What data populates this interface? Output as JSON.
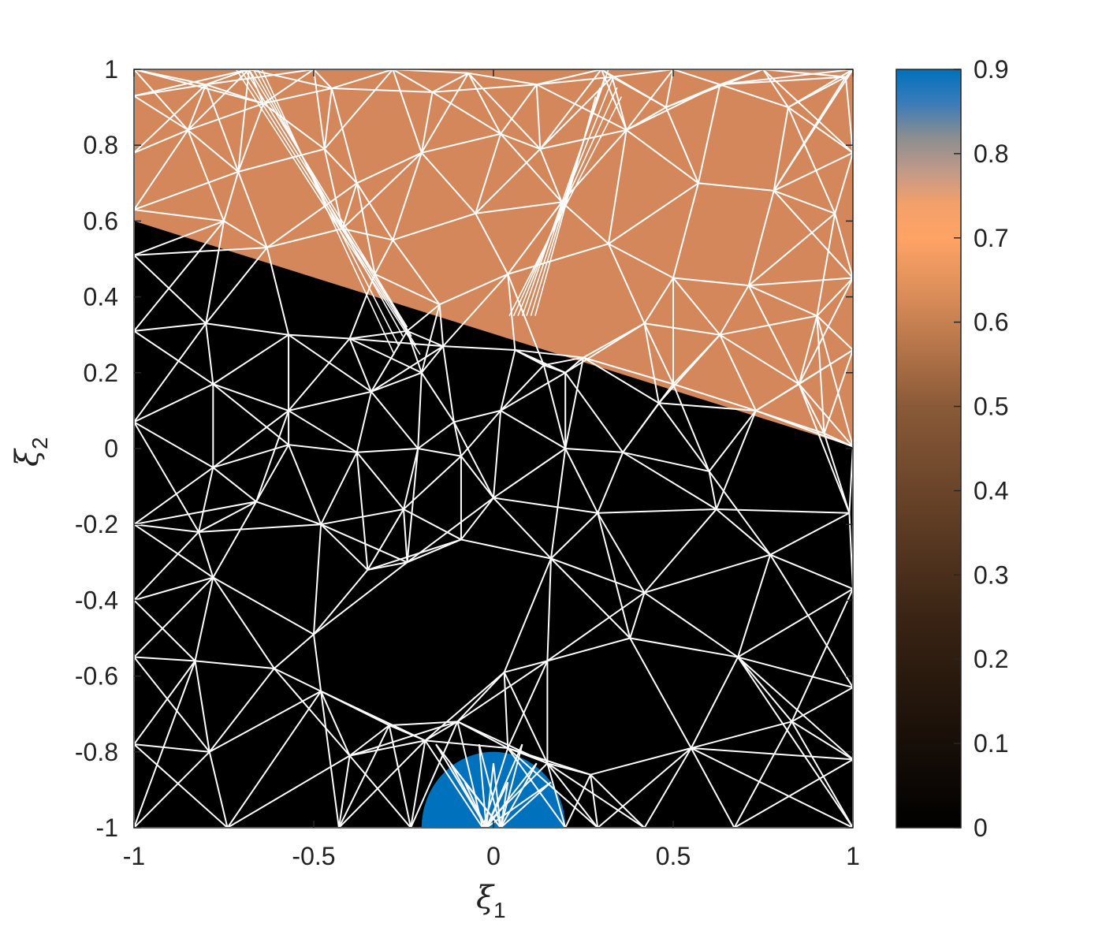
{
  "chart_data": {
    "type": "heatmap",
    "description_type": "triangulated mesh over a piecewise-constant field",
    "xlabel": "ξ",
    "xlabel_sub": "1",
    "ylabel": "ξ",
    "ylabel_sub": "2",
    "xlim": [
      -1,
      1
    ],
    "ylim": [
      -1,
      1
    ],
    "x_ticks": [
      -1,
      -0.5,
      0,
      0.5,
      1
    ],
    "x_tick_labels": [
      "-1",
      "-0.5",
      "0",
      "0.5",
      "1"
    ],
    "y_ticks": [
      -1,
      -0.8,
      -0.6,
      -0.4,
      -0.2,
      0,
      0.2,
      0.4,
      0.6,
      0.8,
      1
    ],
    "y_tick_labels": [
      "-1",
      "-0.8",
      "-0.6",
      "-0.4",
      "-0.2",
      "0",
      "0.2",
      "0.4",
      "0.6",
      "0.8",
      "1"
    ],
    "colorbar": {
      "range": [
        0,
        0.9
      ],
      "ticks": [
        0,
        0.1,
        0.2,
        0.3,
        0.4,
        0.5,
        0.6,
        0.7,
        0.8,
        0.9
      ],
      "tick_labels": [
        "0",
        "0.1",
        "0.2",
        "0.3",
        "0.4",
        "0.5",
        "0.6",
        "0.7",
        "0.8",
        "0.9"
      ],
      "colormap_stops": [
        {
          "value": 0.0,
          "color": "#000000"
        },
        {
          "value": 0.25,
          "color": "#3a2414"
        },
        {
          "value": 0.5,
          "color": "#8a5a38"
        },
        {
          "value": 0.63,
          "color": "#d98c58"
        },
        {
          "value": 0.7,
          "color": "#ffa366"
        },
        {
          "value": 0.74,
          "color": "#f3a06a"
        },
        {
          "value": 0.78,
          "color": "#c09a88"
        },
        {
          "value": 0.82,
          "color": "#8a8e90"
        },
        {
          "value": 0.86,
          "color": "#3a7bb8"
        },
        {
          "value": 0.9,
          "color": "#0072bd"
        }
      ]
    },
    "regions": [
      {
        "value": 0.0,
        "color": "#000000",
        "shape": "background"
      },
      {
        "value": 0.62,
        "color": "#d4875a",
        "shape": "polygon",
        "points": [
          [
            -1,
            0.6
          ],
          [
            1,
            0.005
          ],
          [
            1,
            1
          ],
          [
            -1,
            1
          ]
        ]
      },
      {
        "value": 0.9,
        "color": "#0072bd",
        "shape": "disk",
        "center": [
          0,
          -1
        ],
        "radius": 0.2
      }
    ],
    "mesh": {
      "color": "#ffffff",
      "line_width": 2,
      "vertices": [
        [
          -1,
          -1
        ],
        [
          -0.74,
          -1
        ],
        [
          -0.43,
          -1
        ],
        [
          -0.23,
          -1
        ],
        [
          -0.03,
          -1
        ],
        [
          0.2,
          -1
        ],
        [
          0.29,
          -1
        ],
        [
          0.42,
          -1
        ],
        [
          0.67,
          -1
        ],
        [
          1,
          -1
        ],
        [
          -1,
          -0.78
        ],
        [
          -0.79,
          -0.8
        ],
        [
          -0.4,
          -0.81
        ],
        [
          -0.19,
          -0.77
        ],
        [
          -0.1,
          -0.72
        ],
        [
          0.04,
          -0.79
        ],
        [
          0.15,
          -0.83
        ],
        [
          0.27,
          -0.86
        ],
        [
          0.55,
          -0.79
        ],
        [
          0.83,
          -0.72
        ],
        [
          1,
          -0.82
        ],
        [
          -1,
          -0.55
        ],
        [
          -0.83,
          -0.56
        ],
        [
          -0.61,
          -0.58
        ],
        [
          -0.48,
          -0.64
        ],
        [
          -0.29,
          -0.73
        ],
        [
          0.03,
          -0.59
        ],
        [
          0.15,
          -0.56
        ],
        [
          0.38,
          -0.5
        ],
        [
          0.68,
          -0.55
        ],
        [
          1,
          -0.63
        ],
        [
          -1,
          -0.4
        ],
        [
          -0.78,
          -0.34
        ],
        [
          -0.5,
          -0.49
        ],
        [
          -0.35,
          -0.32
        ],
        [
          -0.24,
          -0.3
        ],
        [
          -0.09,
          -0.24
        ],
        [
          0.16,
          -0.29
        ],
        [
          0.42,
          -0.38
        ],
        [
          0.77,
          -0.28
        ],
        [
          1,
          -0.37
        ],
        [
          -1,
          -0.2
        ],
        [
          -0.82,
          -0.22
        ],
        [
          -0.66,
          -0.14
        ],
        [
          -0.48,
          -0.2
        ],
        [
          -0.25,
          -0.16
        ],
        [
          -0.09,
          -0.02
        ],
        [
          0.0,
          -0.13
        ],
        [
          0.29,
          -0.17
        ],
        [
          0.62,
          -0.16
        ],
        [
          0.99,
          -0.17
        ],
        [
          -1,
          0.07
        ],
        [
          -0.78,
          -0.05
        ],
        [
          -0.57,
          0.01
        ],
        [
          -0.38,
          -0.01
        ],
        [
          -0.21,
          0.0
        ],
        [
          -0.11,
          0.07
        ],
        [
          0.2,
          0.0
        ],
        [
          0.36,
          -0.01
        ],
        [
          0.6,
          -0.06
        ],
        [
          1,
          0.005
        ],
        [
          -1,
          0.31
        ],
        [
          -0.78,
          0.17
        ],
        [
          -0.57,
          0.1
        ],
        [
          -0.34,
          0.15
        ],
        [
          -0.2,
          0.2
        ],
        [
          0.02,
          0.1
        ],
        [
          0.14,
          0.22
        ],
        [
          0.2,
          0.2
        ],
        [
          0.46,
          0.12
        ],
        [
          0.73,
          0.1
        ],
        [
          -1,
          0.51
        ],
        [
          -0.8,
          0.33
        ],
        [
          -0.57,
          0.3
        ],
        [
          -0.4,
          0.29
        ],
        [
          -0.24,
          0.31
        ],
        [
          -0.14,
          0.27
        ],
        [
          0.06,
          0.26
        ],
        [
          0.25,
          0.24
        ],
        [
          0.5,
          0.17
        ],
        [
          0.92,
          0.04
        ],
        [
          -0.63,
          0.53
        ],
        [
          -0.33,
          0.46
        ],
        [
          -0.15,
          0.38
        ],
        [
          -0.05,
          0.62
        ],
        [
          0.19,
          0.65
        ],
        [
          0.32,
          0.54
        ],
        [
          0.5,
          0.45
        ],
        [
          0.71,
          0.43
        ],
        [
          0.9,
          0.35
        ],
        [
          1,
          0.45
        ],
        [
          -1,
          0.63
        ],
        [
          -0.75,
          0.6
        ],
        [
          -0.42,
          0.58
        ],
        [
          -0.28,
          0.55
        ],
        [
          0.04,
          0.46
        ],
        [
          0.42,
          0.33
        ],
        [
          0.63,
          0.3
        ],
        [
          0.85,
          0.17
        ],
        [
          1,
          0.26
        ],
        [
          -1,
          0.78
        ],
        [
          -0.85,
          0.84
        ],
        [
          -0.71,
          0.73
        ],
        [
          -0.47,
          0.79
        ],
        [
          -0.38,
          0.7
        ],
        [
          -0.2,
          0.78
        ],
        [
          0.02,
          0.83
        ],
        [
          0.13,
          0.79
        ],
        [
          0.37,
          0.84
        ],
        [
          0.57,
          0.7
        ],
        [
          0.78,
          0.68
        ],
        [
          0.95,
          0.62
        ],
        [
          1,
          0.78
        ],
        [
          -1,
          0.93
        ],
        [
          -0.8,
          0.96
        ],
        [
          -0.64,
          0.91
        ],
        [
          -0.45,
          0.95
        ],
        [
          -0.17,
          0.94
        ],
        [
          -0.07,
          0.99
        ],
        [
          0.12,
          0.96
        ],
        [
          0.33,
          0.98
        ],
        [
          0.48,
          0.9
        ],
        [
          0.63,
          0.96
        ],
        [
          0.82,
          0.9
        ],
        [
          0.98,
          0.98
        ],
        [
          -1,
          1
        ],
        [
          -0.68,
          1
        ],
        [
          -0.5,
          1
        ],
        [
          -0.28,
          1
        ],
        [
          0.3,
          1
        ],
        [
          0.5,
          1
        ],
        [
          0.75,
          1
        ],
        [
          1,
          1
        ]
      ]
    }
  }
}
